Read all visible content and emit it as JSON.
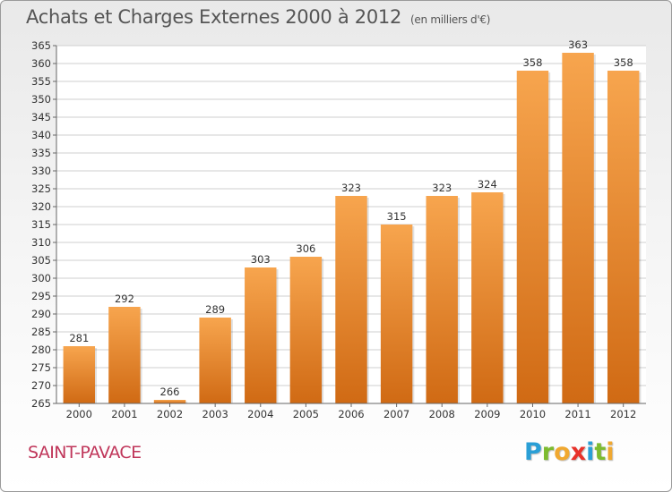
{
  "header": {
    "title": "Achats et Charges Externes 2000 à 2012",
    "subtitle": "(en milliers d'€)"
  },
  "footer": {
    "commune": "SAINT-PAVACE",
    "logo_letters": [
      "P",
      "r",
      "o",
      "x",
      "i",
      "t",
      "i"
    ],
    "logo_colors": [
      "#2a9fd6",
      "#7dbb2f",
      "#f0a830",
      "#e8322a",
      "#2a9fd6",
      "#7dbb2f",
      "#f0a830"
    ]
  },
  "colors": {
    "bar_light": "#f7a54e",
    "bar_dark": "#d06a14",
    "grid": "#cfcfcf",
    "axis": "#666666",
    "text": "#333333"
  },
  "chart_data": {
    "type": "bar",
    "title": "Achats et Charges Externes 2000 à 2012",
    "subtitle": "(en milliers d'€)",
    "categories": [
      "2000",
      "2001",
      "2002",
      "2003",
      "2004",
      "2005",
      "2006",
      "2007",
      "2008",
      "2009",
      "2010",
      "2011",
      "2012"
    ],
    "values": [
      281,
      292,
      266,
      289,
      303,
      306,
      323,
      315,
      323,
      324,
      358,
      363,
      358
    ],
    "ylim": [
      265,
      365
    ],
    "yticks": [
      265,
      270,
      275,
      280,
      285,
      290,
      295,
      300,
      305,
      310,
      315,
      320,
      325,
      330,
      335,
      340,
      345,
      350,
      355,
      360,
      365
    ],
    "grid": true,
    "xlabel": "",
    "ylabel": ""
  }
}
